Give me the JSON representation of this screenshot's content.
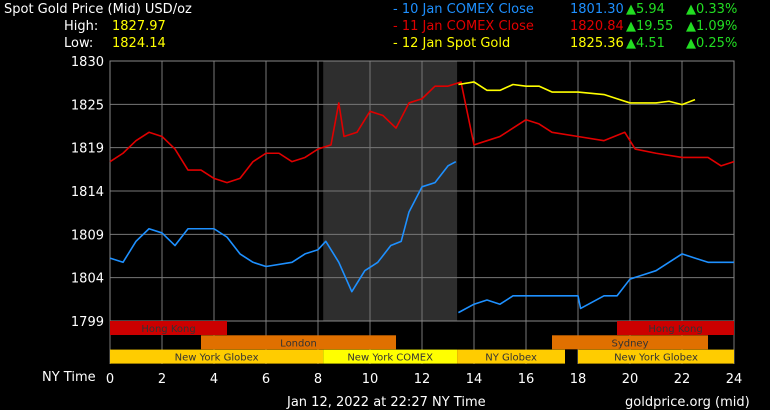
{
  "header": {
    "title": "Spot Gold Price (Mid) USD/oz",
    "high_label": "High:",
    "high": "1827.97",
    "low_label": "Low:",
    "low": "1824.14"
  },
  "legend": [
    {
      "name": "- 10 Jan COMEX Close",
      "price": "1801.30",
      "chg": "▲5.94",
      "pct": "▲0.33%",
      "color": "#1e90ff"
    },
    {
      "name": "- 11 Jan COMEX Close",
      "price": "1820.84",
      "chg": "▲19.55",
      "pct": "▲1.09%",
      "color": "#e00000"
    },
    {
      "name": "- 12 Jan Spot Gold",
      "price": "1825.36",
      "chg": "▲4.51",
      "pct": "▲0.25%",
      "color": "#ffff00"
    }
  ],
  "footer": {
    "timestamp": "Jan 12, 2022 at 22:27 NY Time",
    "source": "goldprice.org (mid)",
    "xlabel": "NY Time"
  },
  "chart_data": {
    "type": "line",
    "xlim": [
      0,
      24
    ],
    "ylim": [
      1799,
      1830
    ],
    "x_ticks": [
      "0",
      "2",
      "4",
      "6",
      "8",
      "10",
      "12",
      "14",
      "16",
      "18",
      "20",
      "22",
      "24"
    ],
    "y_ticks": [
      "1830",
      "1825",
      "1819",
      "1814",
      "1809",
      "1804",
      "1799"
    ],
    "grid": true,
    "highlight_hours": [
      8.2,
      13.35
    ],
    "sessions": [
      {
        "label": "Hong Kong",
        "row": 0,
        "start": 0,
        "end": 4.5,
        "color": "#cc0000"
      },
      {
        "label": "Hong Kong",
        "row": 0,
        "start": 19.5,
        "end": 24,
        "color": "#cc0000"
      },
      {
        "label": "London",
        "row": 1,
        "start": 3.5,
        "end": 11,
        "color": "#e07000"
      },
      {
        "label": "Sydney",
        "row": 1,
        "start": 17,
        "end": 23,
        "color": "#e07000"
      },
      {
        "label": "New York Globex",
        "row": 2,
        "start": 0,
        "end": 8.2,
        "color": "#ffcc00"
      },
      {
        "label": "New York COMEX",
        "row": 2,
        "start": 8.2,
        "end": 13.35,
        "color": "#ffff00"
      },
      {
        "label": "NY Globex",
        "row": 2,
        "start": 13.35,
        "end": 17.5,
        "color": "#ffcc00"
      },
      {
        "label": "New York Globex",
        "row": 2,
        "start": 18,
        "end": 24,
        "color": "#ffcc00"
      }
    ],
    "series": [
      {
        "name": "10 Jan COMEX Close",
        "color": "#1e90ff",
        "segments": [
          [
            [
              0,
              1806.5
            ],
            [
              0.5,
              1806
            ],
            [
              1,
              1808.5
            ],
            [
              1.5,
              1810
            ],
            [
              2,
              1809.5
            ],
            [
              2.5,
              1808
            ],
            [
              3,
              1810
            ],
            [
              4,
              1810
            ],
            [
              4.5,
              1809
            ],
            [
              5,
              1807
            ],
            [
              5.5,
              1806
            ],
            [
              6,
              1805.5
            ],
            [
              7,
              1806
            ],
            [
              7.5,
              1807
            ],
            [
              8,
              1807.5
            ],
            [
              8.3,
              1808.5
            ],
            [
              8.8,
              1806
            ],
            [
              9.3,
              1802.5
            ],
            [
              9.8,
              1805
            ],
            [
              10.3,
              1806
            ],
            [
              10.8,
              1808
            ],
            [
              11.2,
              1808.5
            ],
            [
              11.5,
              1812
            ],
            [
              12,
              1815
            ],
            [
              12.5,
              1815.5
            ],
            [
              13,
              1817.5
            ],
            [
              13.3,
              1818
            ]
          ],
          [
            [
              13.4,
              1800
            ],
            [
              14,
              1801
            ],
            [
              14.5,
              1801.5
            ],
            [
              15,
              1801
            ],
            [
              15.5,
              1802
            ],
            [
              16,
              1802
            ],
            [
              17,
              1802
            ],
            [
              18,
              1802
            ],
            [
              18.1,
              1800.5
            ],
            [
              19,
              1802
            ],
            [
              19.5,
              1802
            ],
            [
              20,
              1804
            ],
            [
              20.5,
              1804.5
            ],
            [
              21,
              1805
            ],
            [
              21.5,
              1806
            ],
            [
              22,
              1807
            ],
            [
              22.5,
              1806.5
            ],
            [
              23,
              1806
            ],
            [
              24,
              1806
            ]
          ]
        ]
      },
      {
        "name": "11 Jan COMEX Close",
        "color": "#e00000",
        "segments": [
          [
            [
              0,
              1818
            ],
            [
              0.5,
              1819
            ],
            [
              1,
              1820.5
            ],
            [
              1.5,
              1821.5
            ],
            [
              2,
              1821
            ],
            [
              2.5,
              1819.5
            ],
            [
              3,
              1817
            ],
            [
              3.5,
              1817
            ],
            [
              4,
              1816
            ],
            [
              4.5,
              1815.5
            ],
            [
              5,
              1816
            ],
            [
              5.5,
              1818
            ],
            [
              6,
              1819
            ],
            [
              6.5,
              1819
            ],
            [
              7,
              1818
            ],
            [
              7.5,
              1818.5
            ],
            [
              8,
              1819.5
            ],
            [
              8.5,
              1820
            ],
            [
              8.8,
              1825
            ],
            [
              9,
              1821
            ],
            [
              9.5,
              1821.5
            ],
            [
              10,
              1824
            ],
            [
              10.5,
              1823.5
            ],
            [
              11,
              1822
            ],
            [
              11.5,
              1825
            ],
            [
              12,
              1825.5
            ],
            [
              12.5,
              1827
            ],
            [
              13,
              1827
            ],
            [
              13.5,
              1827.5
            ],
            [
              14,
              1820
            ],
            [
              14.5,
              1820.5
            ],
            [
              15,
              1821
            ],
            [
              15.5,
              1822
            ],
            [
              16,
              1823
            ],
            [
              16.5,
              1822.5
            ],
            [
              17,
              1821.5
            ],
            [
              18,
              1821
            ],
            [
              19,
              1820.5
            ],
            [
              19.8,
              1821.5
            ],
            [
              20.2,
              1819.5
            ],
            [
              21,
              1819
            ],
            [
              22,
              1818.5
            ],
            [
              23,
              1818.5
            ],
            [
              23.5,
              1817.5
            ],
            [
              24,
              1818
            ]
          ]
        ]
      },
      {
        "name": "12 Jan Spot Gold",
        "color": "#ffff00",
        "segments": [
          [
            [
              13.4,
              1827.2
            ],
            [
              14,
              1827.5
            ],
            [
              14.5,
              1826.5
            ],
            [
              15,
              1826.5
            ],
            [
              15.5,
              1827.2
            ],
            [
              16,
              1827
            ],
            [
              16.5,
              1827
            ],
            [
              17,
              1826.3
            ],
            [
              18,
              1826.3
            ],
            [
              19,
              1826
            ],
            [
              19.5,
              1825.5
            ],
            [
              20,
              1825
            ],
            [
              21,
              1825
            ],
            [
              21.5,
              1825.2
            ],
            [
              22,
              1824.8
            ],
            [
              22.5,
              1825.4
            ]
          ]
        ]
      }
    ]
  }
}
